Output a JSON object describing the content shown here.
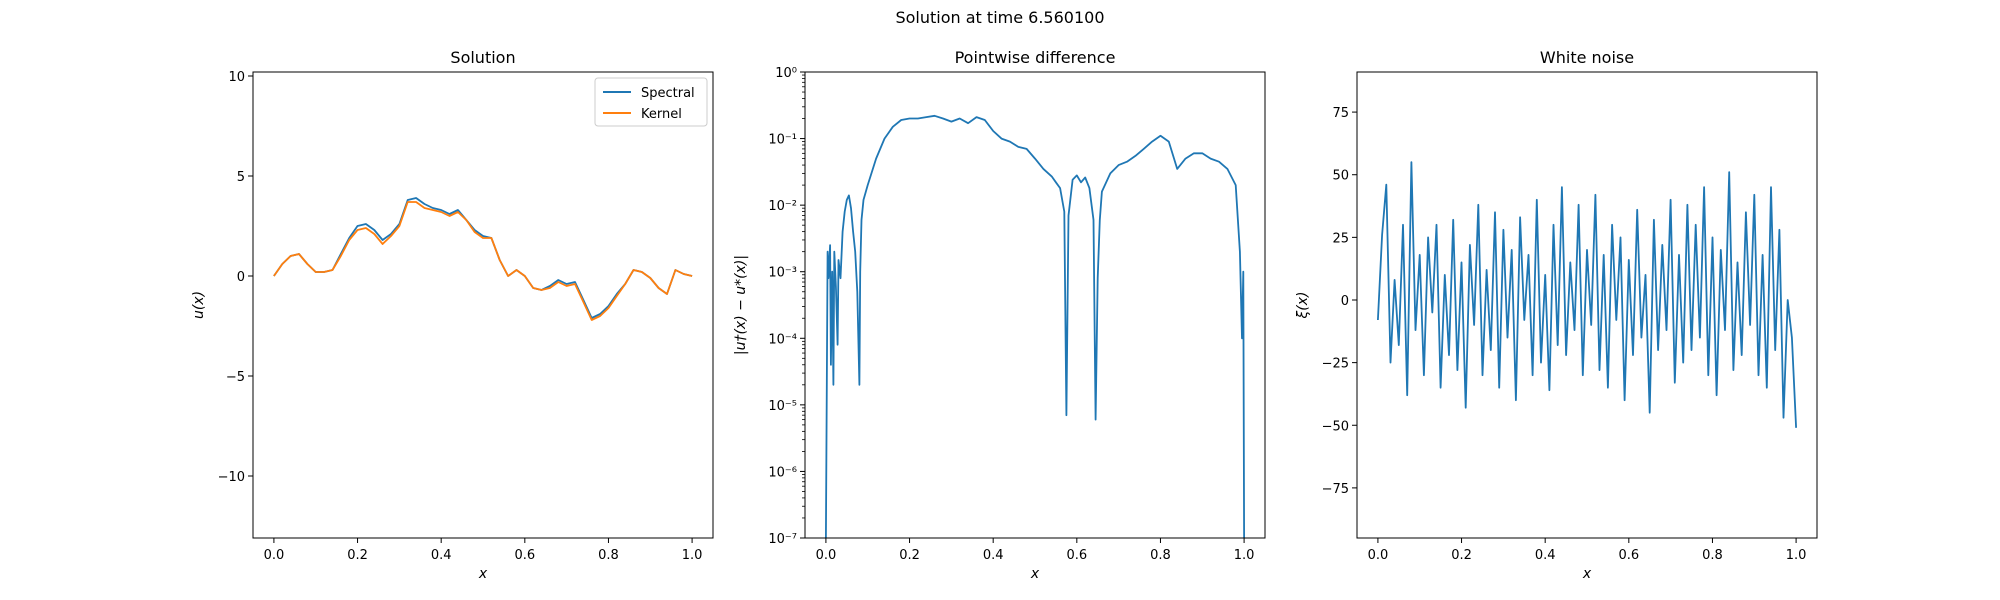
{
  "figure": {
    "suptitle": "Solution at time 6.560100"
  },
  "chart_data": [
    {
      "type": "line",
      "title": "Solution",
      "xlabel": "x",
      "ylabel": "u(x)",
      "xlim": [
        -0.05,
        1.05
      ],
      "ylim": [
        -13.1,
        10.2
      ],
      "xticks": [
        0.0,
        0.2,
        0.4,
        0.6,
        0.8,
        1.0
      ],
      "xtick_labels": [
        "0.0",
        "0.2",
        "0.4",
        "0.6",
        "0.8",
        "1.0"
      ],
      "yticks": [
        -10,
        -5,
        0,
        5,
        10
      ],
      "ytick_labels": [
        "−10",
        "−5",
        "0",
        "5",
        "10"
      ],
      "legend": "top-right",
      "x": [
        0.0,
        0.02,
        0.04,
        0.06,
        0.08,
        0.1,
        0.12,
        0.14,
        0.16,
        0.18,
        0.2,
        0.22,
        0.24,
        0.26,
        0.28,
        0.3,
        0.32,
        0.34,
        0.36,
        0.38,
        0.4,
        0.42,
        0.44,
        0.46,
        0.48,
        0.5,
        0.52,
        0.54,
        0.56,
        0.58,
        0.6,
        0.62,
        0.64,
        0.66,
        0.68,
        0.7,
        0.72,
        0.74,
        0.76,
        0.78,
        0.8,
        0.82,
        0.84,
        0.86,
        0.88,
        0.9,
        0.92,
        0.94,
        0.96,
        0.98,
        1.0
      ],
      "series": [
        {
          "name": "Spectral",
          "color": "#1f77b4",
          "values": [
            0.0,
            0.6,
            1.0,
            1.1,
            0.6,
            0.2,
            0.2,
            0.3,
            1.1,
            1.9,
            2.5,
            2.6,
            2.3,
            1.8,
            2.1,
            2.6,
            3.8,
            3.9,
            3.6,
            3.4,
            3.3,
            3.1,
            3.3,
            2.8,
            2.3,
            2.0,
            1.9,
            0.8,
            0.0,
            0.3,
            0.0,
            -0.6,
            -0.7,
            -0.5,
            -0.2,
            -0.4,
            -0.3,
            -1.2,
            -2.1,
            -1.9,
            -1.5,
            -0.9,
            -0.4,
            0.3,
            0.2,
            -0.1,
            -0.6,
            -0.9,
            0.3,
            0.1,
            0.0
          ]
        },
        {
          "name": "Kernel",
          "color": "#ff7f0e",
          "values": [
            0.0,
            0.6,
            1.0,
            1.1,
            0.6,
            0.2,
            0.2,
            0.3,
            1.0,
            1.8,
            2.3,
            2.4,
            2.1,
            1.6,
            2.0,
            2.5,
            3.7,
            3.7,
            3.4,
            3.3,
            3.2,
            3.0,
            3.2,
            2.8,
            2.2,
            1.9,
            1.9,
            0.8,
            0.0,
            0.3,
            0.0,
            -0.6,
            -0.7,
            -0.6,
            -0.3,
            -0.5,
            -0.4,
            -1.3,
            -2.2,
            -2.0,
            -1.6,
            -1.0,
            -0.4,
            0.3,
            0.2,
            -0.1,
            -0.6,
            -0.9,
            0.3,
            0.1,
            0.0
          ]
        }
      ]
    },
    {
      "type": "line",
      "title": "Pointwise difference",
      "xlabel": "x",
      "ylabel": "|u†(x) − u*(x)|",
      "yscale": "log",
      "xlim": [
        -0.05,
        1.05
      ],
      "ylim": [
        1e-07,
        1
      ],
      "xticks": [
        0.0,
        0.2,
        0.4,
        0.6,
        0.8,
        1.0
      ],
      "xtick_labels": [
        "0.0",
        "0.2",
        "0.4",
        "0.6",
        "0.8",
        "1.0"
      ],
      "yticks": [
        1e-07,
        1e-06,
        1e-05,
        0.0001,
        0.001,
        0.01,
        0.1,
        1
      ],
      "ytick_labels": [
        "10⁻⁷",
        "10⁻⁶",
        "10⁻⁵",
        "10⁻⁴",
        "10⁻³",
        "10⁻²",
        "10⁻¹",
        "10⁰"
      ],
      "x": [
        0.0,
        0.004,
        0.006,
        0.01,
        0.012,
        0.015,
        0.018,
        0.02,
        0.024,
        0.028,
        0.03,
        0.035,
        0.04,
        0.045,
        0.05,
        0.055,
        0.06,
        0.065,
        0.07,
        0.075,
        0.08,
        0.082,
        0.085,
        0.09,
        0.1,
        0.12,
        0.14,
        0.16,
        0.18,
        0.2,
        0.22,
        0.24,
        0.26,
        0.28,
        0.3,
        0.32,
        0.34,
        0.36,
        0.38,
        0.4,
        0.42,
        0.44,
        0.46,
        0.48,
        0.5,
        0.52,
        0.54,
        0.55,
        0.56,
        0.57,
        0.575,
        0.58,
        0.59,
        0.6,
        0.61,
        0.62,
        0.63,
        0.64,
        0.645,
        0.65,
        0.655,
        0.66,
        0.68,
        0.7,
        0.72,
        0.74,
        0.76,
        0.78,
        0.8,
        0.82,
        0.84,
        0.86,
        0.88,
        0.9,
        0.92,
        0.94,
        0.96,
        0.98,
        0.99,
        0.995,
        0.998,
        1.0
      ],
      "series": [
        {
          "name": "",
          "color": "#1f77b4",
          "values": [
            1e-07,
            0.002,
            0.0008,
            0.0025,
            4e-05,
            0.001,
            2e-05,
            0.002,
            0.0006,
            8e-05,
            0.0015,
            0.0008,
            0.004,
            0.008,
            0.012,
            0.014,
            0.009,
            0.004,
            0.002,
            0.0005,
            2e-05,
            0.001,
            0.006,
            0.012,
            0.02,
            0.05,
            0.1,
            0.15,
            0.19,
            0.2,
            0.2,
            0.21,
            0.22,
            0.2,
            0.18,
            0.2,
            0.17,
            0.21,
            0.19,
            0.13,
            0.1,
            0.09,
            0.075,
            0.07,
            0.05,
            0.035,
            0.027,
            0.022,
            0.018,
            0.008,
            7e-06,
            0.007,
            0.024,
            0.028,
            0.022,
            0.026,
            0.018,
            0.006,
            6e-06,
            0.0008,
            0.006,
            0.016,
            0.03,
            0.04,
            0.045,
            0.055,
            0.07,
            0.09,
            0.11,
            0.09,
            0.035,
            0.05,
            0.06,
            0.06,
            0.05,
            0.045,
            0.035,
            0.02,
            0.002,
            0.0001,
            0.001,
            1e-07
          ]
        }
      ]
    },
    {
      "type": "line",
      "title": "White noise",
      "xlabel": "x",
      "ylabel": "ξ(x)",
      "xlim": [
        -0.05,
        1.05
      ],
      "ylim": [
        -95,
        91
      ],
      "xticks": [
        0.0,
        0.2,
        0.4,
        0.6,
        0.8,
        1.0
      ],
      "xtick_labels": [
        "0.0",
        "0.2",
        "0.4",
        "0.6",
        "0.8",
        "1.0"
      ],
      "yticks": [
        -75,
        -50,
        -25,
        0,
        25,
        50,
        75
      ],
      "ytick_labels": [
        "−75",
        "−50",
        "−25",
        "0",
        "25",
        "50",
        "75"
      ],
      "x": [
        0.0,
        0.01,
        0.02,
        0.03,
        0.04,
        0.05,
        0.06,
        0.07,
        0.08,
        0.09,
        0.1,
        0.11,
        0.12,
        0.13,
        0.14,
        0.15,
        0.16,
        0.17,
        0.18,
        0.19,
        0.2,
        0.21,
        0.22,
        0.23,
        0.24,
        0.25,
        0.26,
        0.27,
        0.28,
        0.29,
        0.3,
        0.31,
        0.32,
        0.33,
        0.34,
        0.35,
        0.36,
        0.37,
        0.38,
        0.39,
        0.4,
        0.41,
        0.42,
        0.43,
        0.44,
        0.45,
        0.46,
        0.47,
        0.48,
        0.49,
        0.5,
        0.51,
        0.52,
        0.53,
        0.54,
        0.55,
        0.56,
        0.57,
        0.58,
        0.59,
        0.6,
        0.61,
        0.62,
        0.63,
        0.64,
        0.65,
        0.66,
        0.67,
        0.68,
        0.69,
        0.7,
        0.71,
        0.72,
        0.73,
        0.74,
        0.75,
        0.76,
        0.77,
        0.78,
        0.79,
        0.8,
        0.81,
        0.82,
        0.83,
        0.84,
        0.85,
        0.86,
        0.87,
        0.88,
        0.89,
        0.9,
        0.91,
        0.92,
        0.93,
        0.94,
        0.95,
        0.96,
        0.97,
        0.98,
        0.99,
        1.0
      ],
      "series": [
        {
          "name": "",
          "color": "#1f77b4",
          "values": [
            -8,
            26,
            46,
            -25,
            8,
            -18,
            30,
            -38,
            55,
            -12,
            18,
            -30,
            25,
            -5,
            30,
            -35,
            10,
            -22,
            32,
            -28,
            15,
            -43,
            22,
            -10,
            38,
            -30,
            12,
            -20,
            35,
            -35,
            28,
            -15,
            20,
            -40,
            33,
            -8,
            18,
            -30,
            40,
            -25,
            10,
            -36,
            30,
            -18,
            45,
            -22,
            15,
            -12,
            38,
            -30,
            20,
            -10,
            42,
            -28,
            18,
            -35,
            30,
            -8,
            25,
            -40,
            16,
            -22,
            36,
            -15,
            10,
            -45,
            32,
            -20,
            22,
            -12,
            40,
            -33,
            18,
            -25,
            38,
            -20,
            30,
            -15,
            45,
            -30,
            25,
            -38,
            20,
            -12,
            51,
            -28,
            15,
            -22,
            35,
            -10,
            42,
            -30,
            18,
            -35,
            45,
            -20,
            28,
            -47,
            0,
            -15,
            -51
          ]
        }
      ]
    }
  ]
}
